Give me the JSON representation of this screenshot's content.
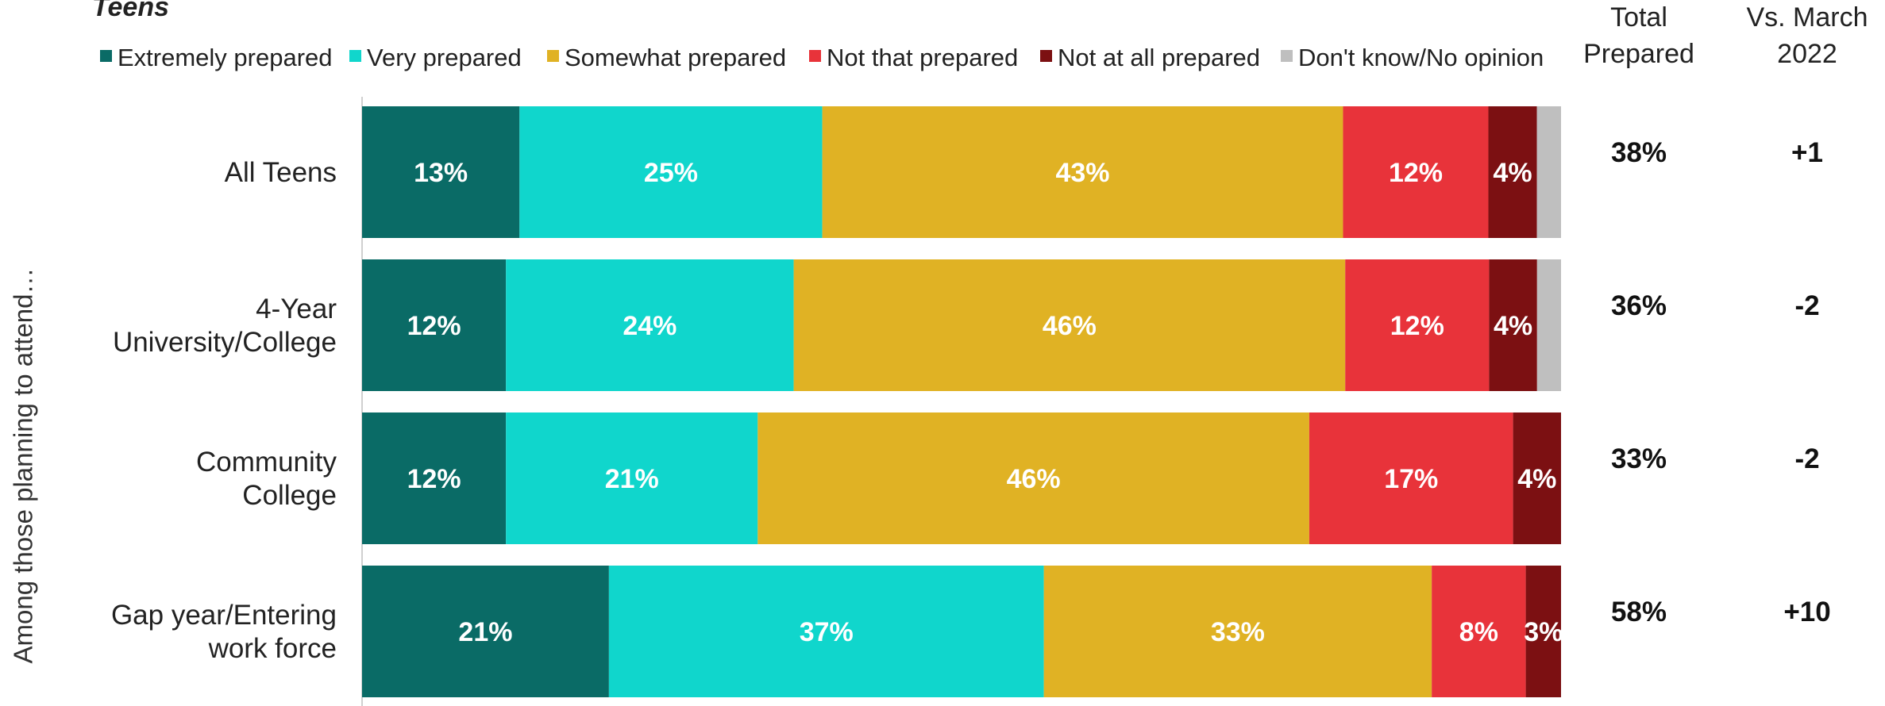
{
  "chart_data": {
    "type": "bar",
    "orientation": "horizontal-stacked",
    "title": "Teens",
    "ylabel": "Among those planning to attend…",
    "categories": [
      "All Teens",
      "4-Year University/College",
      "Community College",
      "Gap year/Entering work force"
    ],
    "category_lines": [
      [
        "All Teens"
      ],
      [
        "4-Year",
        "University/College"
      ],
      [
        "Community",
        "College"
      ],
      [
        "Gap year/Entering",
        "work force"
      ]
    ],
    "series": [
      {
        "name": "Extremely prepared",
        "color": "#0a6b66",
        "values": [
          13,
          12,
          12,
          21
        ],
        "labels": [
          "13%",
          "12%",
          "12%",
          "21%"
        ]
      },
      {
        "name": "Very prepared",
        "color": "#10d6cc",
        "values": [
          25,
          24,
          21,
          37
        ],
        "labels": [
          "25%",
          "24%",
          "21%",
          "37%"
        ]
      },
      {
        "name": "Somewhat prepared",
        "color": "#e0b224",
        "values": [
          43,
          46,
          46,
          33
        ],
        "labels": [
          "43%",
          "46%",
          "46%",
          "33%"
        ]
      },
      {
        "name": "Not that prepared",
        "color": "#e8333a",
        "values": [
          12,
          12,
          17,
          8
        ],
        "labels": [
          "12%",
          "12%",
          "17%",
          "8%"
        ]
      },
      {
        "name": "Not at all prepared",
        "color": "#7c1012",
        "values": [
          4,
          4,
          4,
          3
        ],
        "labels": [
          "4%",
          "4%",
          "4%",
          "3%"
        ]
      },
      {
        "name": "Don't know/No opinion",
        "color": "#bfbfbf",
        "values": [
          2,
          2,
          0,
          0
        ],
        "labels": [
          "",
          "",
          "",
          ""
        ]
      }
    ],
    "xlim": [
      0,
      100
    ],
    "columns": [
      {
        "header": [
          "Total",
          "Prepared"
        ],
        "values": [
          "38%",
          "36%",
          "33%",
          "58%"
        ]
      },
      {
        "header": [
          "Vs. March",
          "2022"
        ],
        "values": [
          "+1",
          "-2",
          "-2",
          "+10"
        ]
      }
    ],
    "legend_position": "top"
  }
}
